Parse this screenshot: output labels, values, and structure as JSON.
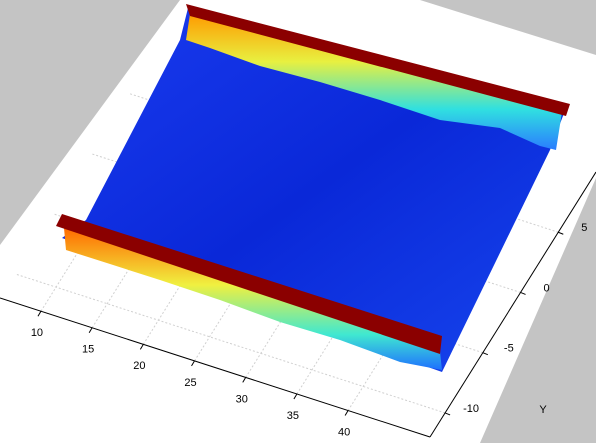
{
  "chart_data": {
    "type": "surface",
    "ylabel": "Y",
    "xlim": [
      6,
      48
    ],
    "xticks": [
      10,
      15,
      20,
      25,
      30,
      35,
      40
    ],
    "ylim": [
      -12,
      10
    ],
    "yticks": [
      -10,
      -5,
      0,
      5
    ],
    "grid": true
  }
}
